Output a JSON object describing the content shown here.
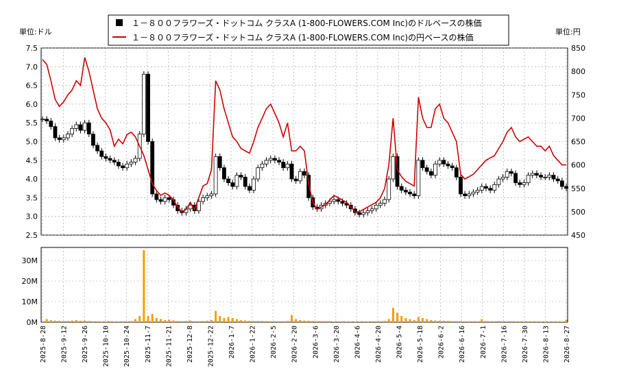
{
  "chart_data": [
    {
      "type": "candlestick+line",
      "legend": [
        {
          "name": "１－８００フラワーズ・ドットコム クラスA (1-800-FLOWERS.COM Inc)のドルベースの株価",
          "color": "#000000",
          "marker": "square"
        },
        {
          "name": "１－８００フラワーズ・ドットコム クラスA (1-800-FLOWERS.COM Inc)の円ベースの株価",
          "color": "#cc0000",
          "marker": "line"
        }
      ],
      "left_axis": {
        "unit_label": "単位:ドル",
        "ylim": [
          2.5,
          7.5
        ],
        "ticks": [
          "2.5",
          "3.0",
          "3.5",
          "4.0",
          "4.5",
          "5.0",
          "5.5",
          "6.0",
          "6.5",
          "7.0",
          "7.5"
        ]
      },
      "right_axis": {
        "unit_label": "単位:円",
        "ylim": [
          450,
          850
        ],
        "ticks": [
          "450",
          "500",
          "550",
          "600",
          "650",
          "700",
          "750",
          "800",
          "850"
        ]
      },
      "grid": true,
      "usd_close": [
        5.6,
        5.55,
        5.4,
        5.1,
        5.05,
        5.1,
        5.2,
        5.35,
        5.45,
        5.3,
        5.5,
        5.2,
        4.9,
        4.75,
        4.6,
        4.55,
        4.5,
        4.45,
        4.35,
        4.3,
        4.4,
        4.45,
        4.55,
        5.2,
        6.8,
        5.0,
        3.6,
        3.45,
        3.4,
        3.5,
        3.45,
        3.3,
        3.15,
        3.1,
        3.2,
        3.3,
        3.15,
        3.4,
        3.5,
        3.55,
        3.6,
        4.6,
        4.3,
        4.0,
        3.9,
        3.8,
        4.1,
        4.05,
        3.8,
        3.7,
        4.0,
        4.3,
        4.4,
        4.5,
        4.55,
        4.5,
        4.45,
        4.3,
        4.4,
        4.0,
        3.95,
        4.2,
        4.1,
        3.5,
        3.25,
        3.2,
        3.3,
        3.35,
        3.4,
        3.45,
        3.4,
        3.35,
        3.3,
        3.2,
        3.1,
        3.05,
        3.1,
        3.15,
        3.2,
        3.3,
        3.35,
        3.45,
        4.0,
        4.6,
        3.8,
        3.7,
        3.65,
        3.6,
        3.55,
        4.5,
        4.3,
        4.2,
        4.1,
        4.4,
        4.5,
        4.4,
        4.35,
        4.3,
        4.05,
        3.6,
        3.55,
        3.6,
        3.65,
        3.7,
        3.8,
        3.75,
        3.7,
        3.85,
        4.0,
        4.05,
        4.2,
        4.15,
        3.9,
        3.85,
        3.9,
        4.1,
        4.15,
        4.1,
        4.05,
        4.05,
        4.1,
        4.0,
        3.95,
        3.8,
        3.75
      ],
      "jpy_close": [
        825,
        815,
        780,
        740,
        725,
        735,
        750,
        760,
        780,
        770,
        830,
        800,
        760,
        720,
        700,
        690,
        675,
        640,
        655,
        645,
        665,
        670,
        660,
        640,
        620,
        590,
        560,
        545,
        535,
        540,
        535,
        525,
        510,
        500,
        505,
        520,
        505,
        530,
        555,
        560,
        590,
        780,
        760,
        720,
        690,
        660,
        650,
        635,
        630,
        625,
        650,
        680,
        700,
        720,
        730,
        710,
        690,
        660,
        690,
        630,
        630,
        640,
        630,
        560,
        520,
        505,
        510,
        515,
        525,
        535,
        530,
        525,
        520,
        510,
        500,
        500,
        505,
        510,
        515,
        520,
        530,
        550,
        600,
        700,
        590,
        575,
        565,
        560,
        555,
        745,
        700,
        680,
        680,
        720,
        730,
        700,
        690,
        670,
        650,
        580,
        570,
        575,
        580,
        590,
        600,
        610,
        615,
        620,
        635,
        650,
        670,
        680,
        660,
        650,
        655,
        660,
        650,
        640,
        640,
        630,
        640,
        620,
        610,
        600,
        600
      ],
      "volume_ylim": [
        0,
        35000000
      ],
      "volume_ticks": [
        "0M",
        "10M",
        "20M",
        "30M"
      ],
      "volume": [
        0.4,
        1.5,
        1.0,
        0.7,
        0.6,
        0.5,
        0.6,
        0.8,
        1.0,
        0.7,
        0.8,
        0.5,
        0.4,
        0.4,
        0.3,
        0.3,
        0.4,
        0.3,
        0.3,
        0.4,
        0.4,
        0.5,
        1.5,
        3.0,
        35.0,
        3.0,
        4.0,
        2.0,
        1.5,
        1.0,
        1.2,
        0.8,
        0.6,
        0.5,
        0.6,
        0.8,
        0.5,
        0.5,
        0.6,
        0.7,
        1.0,
        5.5,
        3.0,
        2.0,
        2.5,
        2.0,
        1.5,
        1.0,
        0.8,
        0.7,
        0.6,
        0.6,
        0.6,
        0.5,
        0.5,
        0.5,
        0.4,
        0.4,
        0.5,
        3.5,
        1.5,
        1.0,
        0.8,
        0.7,
        0.6,
        0.5,
        0.5,
        0.5,
        0.5,
        0.4,
        0.4,
        0.4,
        0.3,
        0.3,
        0.3,
        0.3,
        0.3,
        0.3,
        0.4,
        0.4,
        0.5,
        0.6,
        1.5,
        7.0,
        4.5,
        3.0,
        2.0,
        1.5,
        1.0,
        2.5,
        2.0,
        1.5,
        1.0,
        0.8,
        0.7,
        0.7,
        0.6,
        0.5,
        0.5,
        0.5,
        0.4,
        0.4,
        0.4,
        0.4,
        1.5,
        0.5,
        0.4,
        0.4,
        0.5,
        0.5,
        0.4,
        0.4,
        0.3,
        0.3,
        0.3,
        0.3,
        0.3,
        0.3,
        0.3,
        0.3,
        0.3,
        0.3,
        0.3,
        0.3,
        1.2
      ],
      "x_ticks": [
        "2025-8-28",
        "2025-9-12",
        "2025-9-26",
        "2025-10-10",
        "2025-10-24",
        "2025-11-7",
        "2025-11-21",
        "2025-12-8",
        "2025-12-22",
        "2026-1-7",
        "2026-1-22",
        "2026-2-5",
        "2026-2-20",
        "2026-3-6",
        "2026-3-20",
        "2026-4-6",
        "2026-4-20",
        "2026-5-4",
        "2026-5-18",
        "2026-6-2",
        "2026-6-16",
        "2026-7-1",
        "2026-7-16",
        "2026-7-30",
        "2026-8-13",
        "2026-8-27"
      ]
    }
  ]
}
